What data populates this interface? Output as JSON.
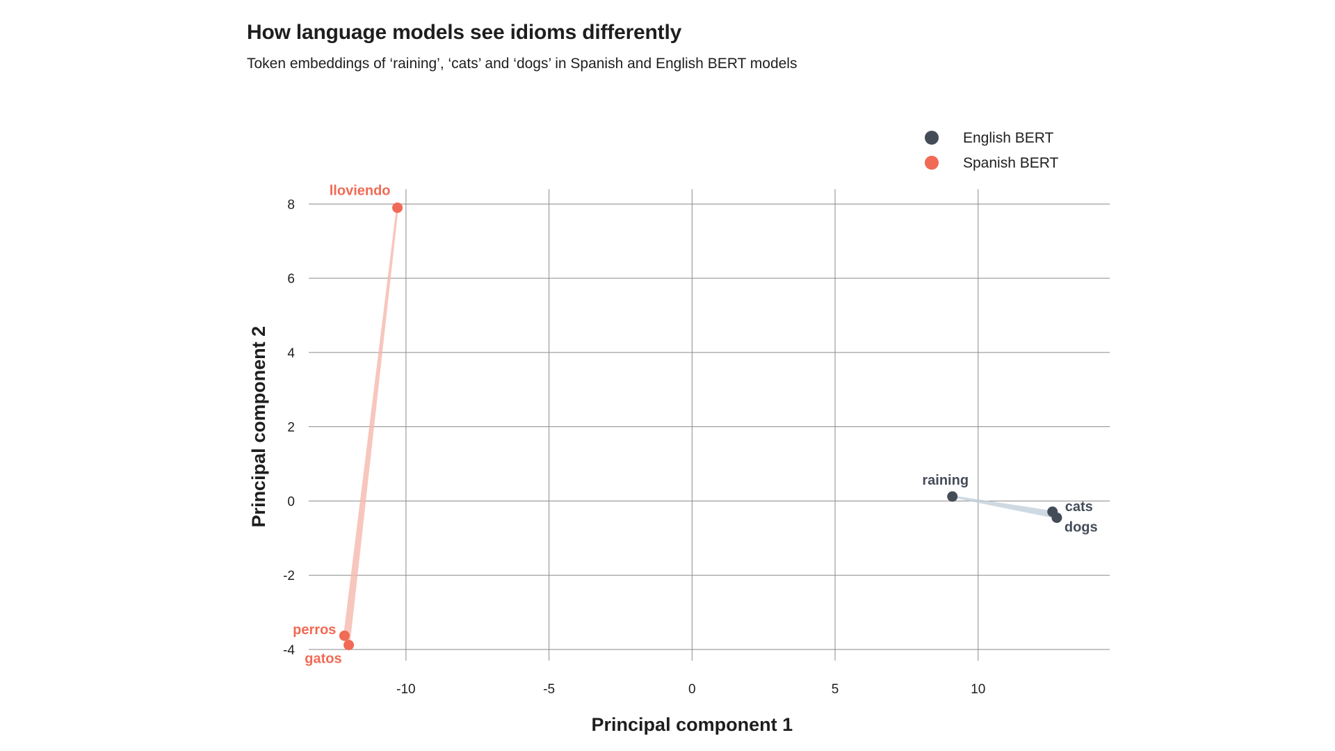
{
  "header": {
    "title": "How language models see idioms differently",
    "subtitle": "Token embeddings of ‘raining’, ‘cats’ and ‘dogs’ in Spanish and English BERT models"
  },
  "chart_data": {
    "type": "scatter",
    "title": "How language models see idioms differently",
    "subtitle": "Token embeddings of ‘raining’, ‘cats’ and ‘dogs’ in Spanish and English BERT models",
    "xlabel": "Principal component 1",
    "ylabel": "Principal component 2",
    "xlim": [
      -13.4,
      14.6
    ],
    "ylim": [
      -4.3,
      8.4
    ],
    "xticks": [
      -10,
      -5,
      0,
      5,
      10
    ],
    "yticks": [
      -4,
      -2,
      0,
      2,
      4,
      6,
      8
    ],
    "xtick_labels": [
      "-10",
      "-5",
      "0",
      "5",
      "10"
    ],
    "ytick_labels": [
      "-4",
      "-2",
      "0",
      "2",
      "4",
      "6",
      "8"
    ],
    "grid": true,
    "legend_position": "top-right",
    "series": [
      {
        "name": "English BERT",
        "color": "#444c58",
        "link_color": "#c4d0db",
        "points": [
          {
            "label": "raining",
            "x": 9.1,
            "y": 0.12
          },
          {
            "label": "cats",
            "x": 12.6,
            "y": -0.29
          },
          {
            "label": "dogs",
            "x": 12.75,
            "y": -0.45
          }
        ]
      },
      {
        "name": "Spanish BERT",
        "color": "#f06a55",
        "link_color": "#f6b8ad",
        "points": [
          {
            "label": "lloviendo",
            "x": -10.3,
            "y": 7.9
          },
          {
            "label": "perros",
            "x": -12.15,
            "y": -3.63
          },
          {
            "label": "gatos",
            "x": -12.0,
            "y": -3.88
          }
        ]
      }
    ]
  }
}
